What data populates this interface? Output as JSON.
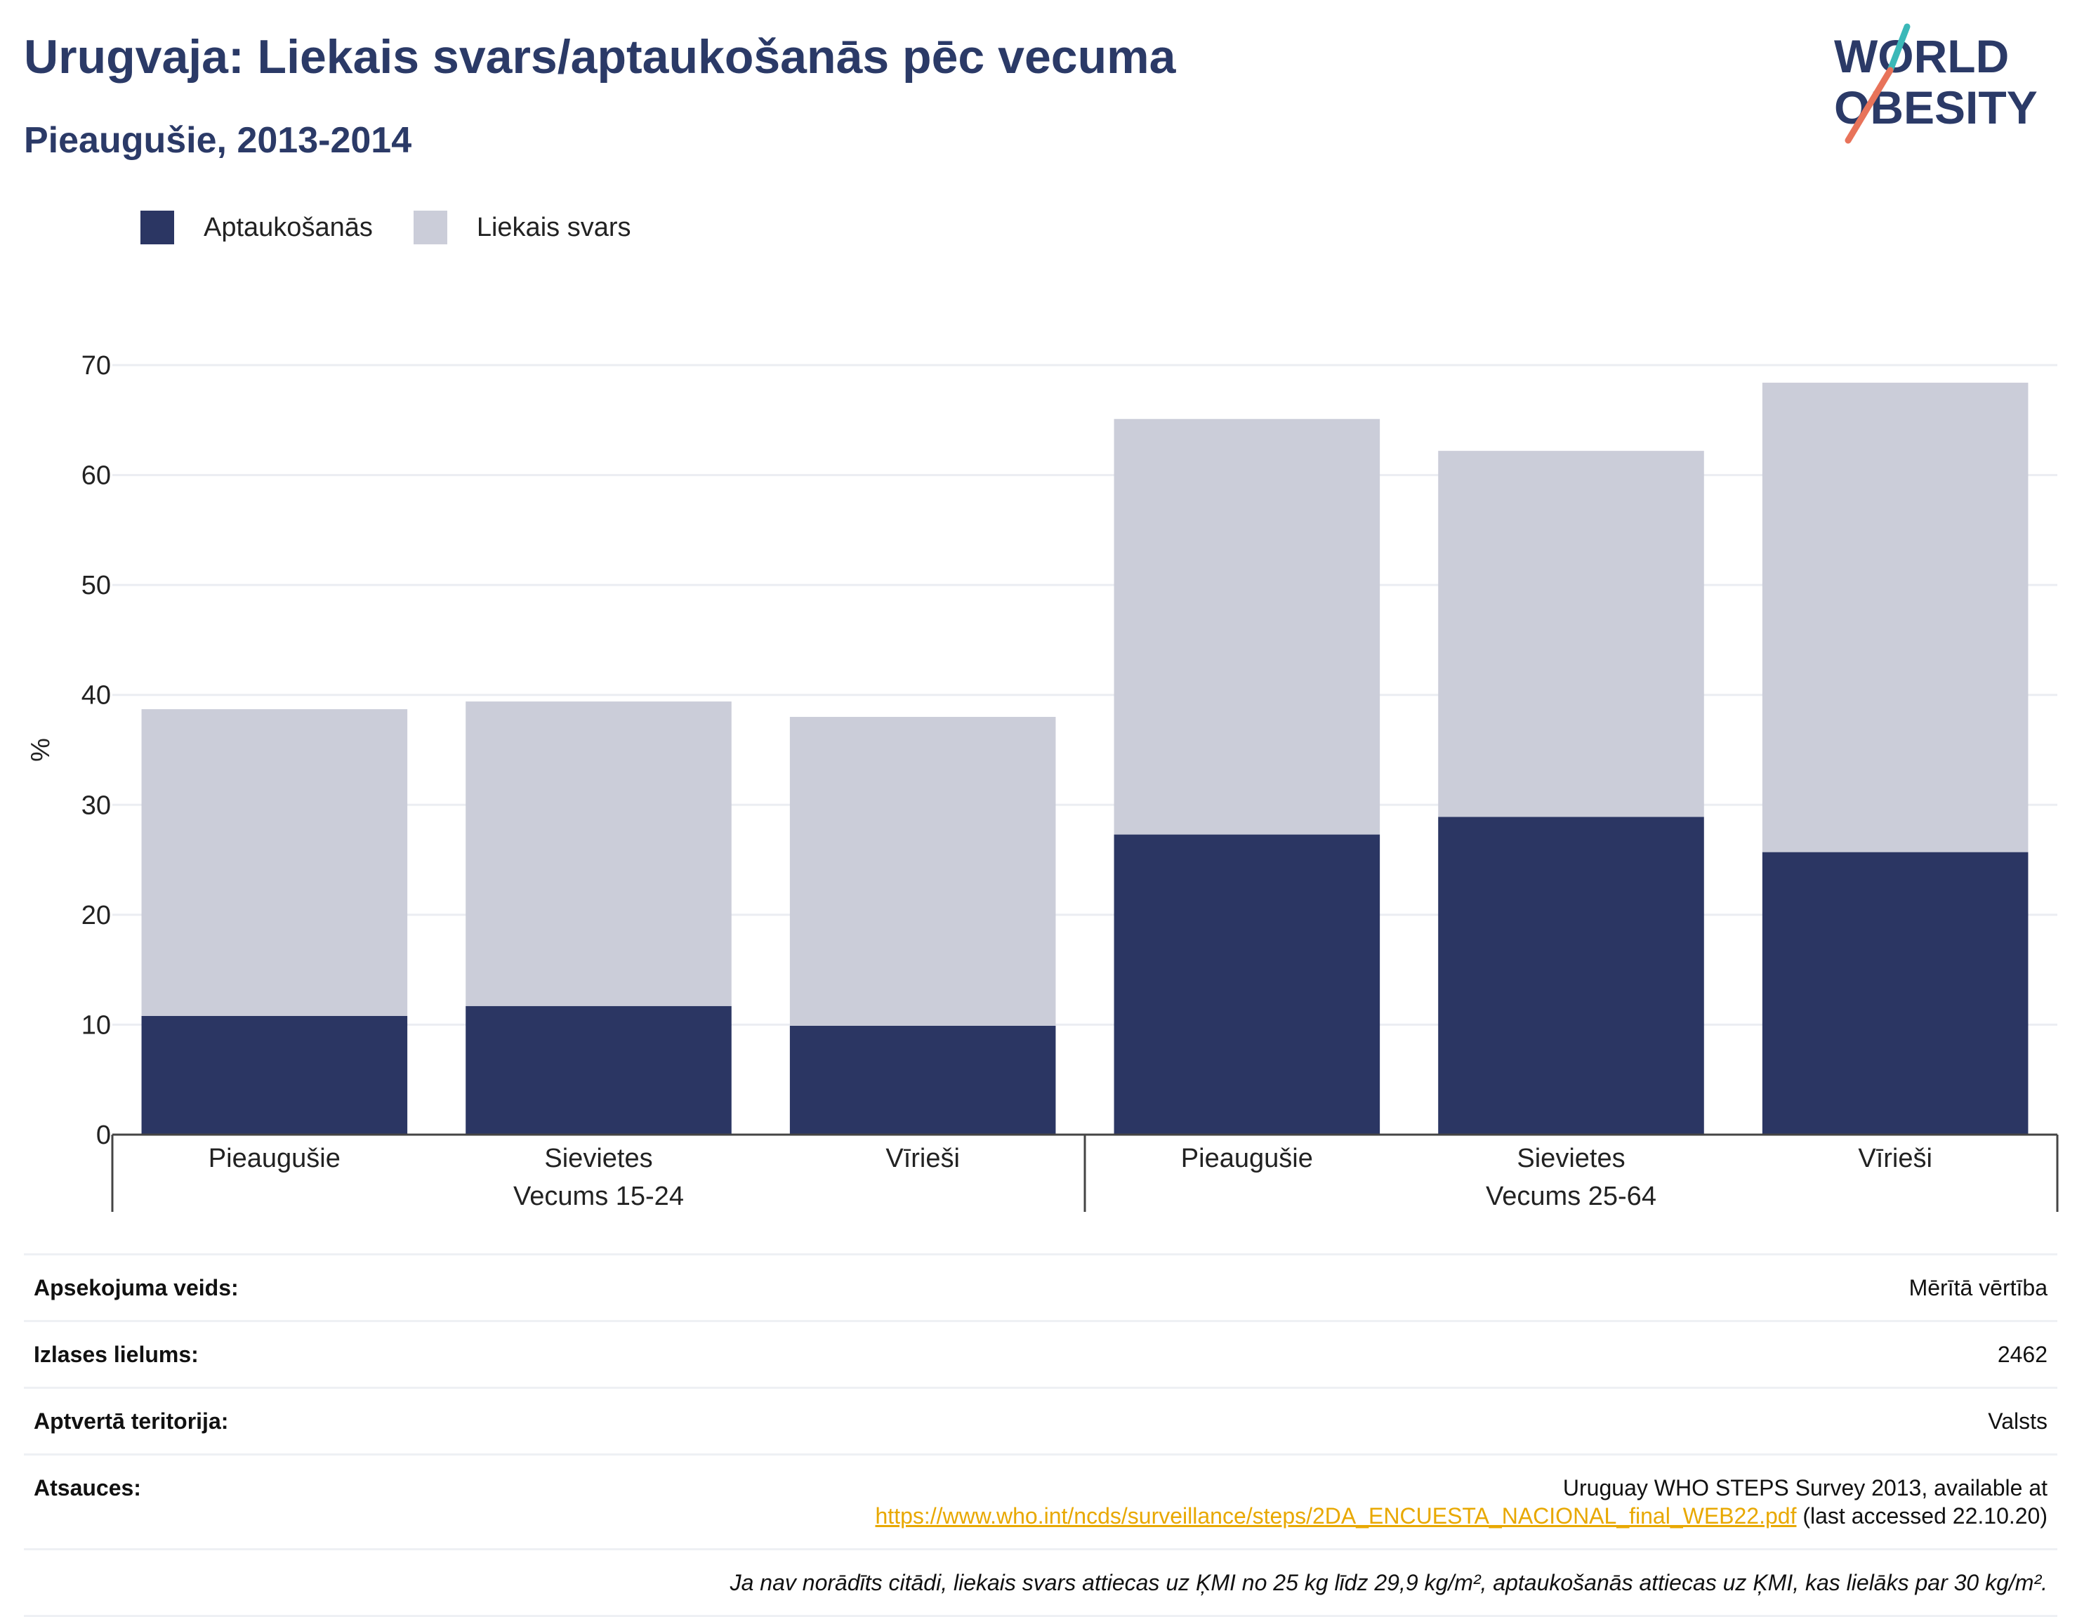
{
  "header": {
    "title": "Urugvaja: Liekais svars/aptaukošanās pēc vecuma",
    "subtitle": "Pieaugušie, 2013-2014"
  },
  "logo": {
    "line1": "WORLD",
    "line2": "OBESITY",
    "accent_teal": "#3bb8b8",
    "accent_coral": "#e8735a"
  },
  "legend": [
    {
      "label": "Aptaukošanās",
      "color": "#2b3663"
    },
    {
      "label": "Liekais svars",
      "color": "#cbcdd9"
    }
  ],
  "chart_data": {
    "type": "bar",
    "stacked": true,
    "ylabel": "%",
    "ylim": [
      0,
      70
    ],
    "yticks": [
      0,
      10,
      20,
      30,
      40,
      50,
      60,
      70
    ],
    "grid": true,
    "legend_position": "top-left",
    "groups": [
      {
        "label": "Vecums 15-24",
        "categories": [
          "Pieaugušie",
          "Sievietes",
          "Vīrieši"
        ]
      },
      {
        "label": "Vecums 25-64",
        "categories": [
          "Pieaugušie",
          "Sievietes",
          "Vīrieši"
        ]
      }
    ],
    "series": [
      {
        "name": "Aptaukošanās",
        "color": "#2b3663",
        "values": [
          10.8,
          11.7,
          9.9,
          27.3,
          28.9,
          25.7
        ]
      },
      {
        "name": "Liekais svars",
        "color": "#cbcdd9",
        "values": [
          27.9,
          27.7,
          28.1,
          37.8,
          33.3,
          42.7
        ]
      }
    ]
  },
  "meta": {
    "rows": [
      {
        "label": "Apsekojuma veids:",
        "value": "Mērītā vērtība"
      },
      {
        "label": "Izlases lielums:",
        "value": "2462"
      },
      {
        "label": "Aptvertā teritorija:",
        "value": "Valsts"
      }
    ],
    "sources": {
      "label": "Atsauces:",
      "line1": "Uruguay WHO STEPS Survey 2013, available at",
      "link": "https://www.who.int/ncds/surveillance/steps/2DA_ENCUESTA_NACIONAL_final_WEB22.pdf",
      "after_link": " (last accessed 22.10.20)"
    },
    "note": "Ja nav norādīts citādi, liekais svars attiecas uz ĶMI no 25 kg līdz 29,9 kg/m², aptaukošanās attiecas uz ĶMI, kas lielāks par 30 kg/m²."
  }
}
